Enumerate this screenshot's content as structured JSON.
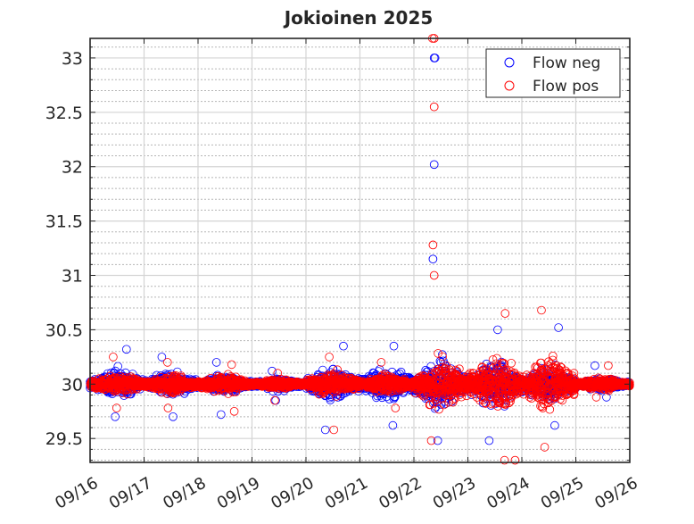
{
  "chart_data": {
    "type": "scatter",
    "title": "Jokioinen 2025",
    "xlabel": "",
    "ylabel": "",
    "x_tick_labels": [
      "09/16",
      "09/17",
      "09/18",
      "09/19",
      "09/20",
      "09/21",
      "09/22",
      "09/23",
      "09/24",
      "09/25",
      "09/26"
    ],
    "x_range": [
      "09/16",
      "09/26"
    ],
    "y_tick_labels": [
      "29.5",
      "30",
      "30.5",
      "31",
      "31.5",
      "32",
      "32.5",
      "33"
    ],
    "ylim": [
      29.28,
      33.18
    ],
    "grid": true,
    "minor_grid": true,
    "legend_position": "top-right",
    "series": [
      {
        "name": "Flow neg",
        "color": "#0000ff",
        "marker": "open-circle",
        "approx_daily_envelope": [
          {
            "day": "09/16",
            "min": 29.7,
            "max": 30.32
          },
          {
            "day": "09/17",
            "min": 29.7,
            "max": 30.25
          },
          {
            "day": "09/18",
            "min": 29.72,
            "max": 30.2
          },
          {
            "day": "09/19",
            "min": 29.85,
            "max": 30.12
          },
          {
            "day": "09/20",
            "min": 29.58,
            "max": 30.35
          },
          {
            "day": "09/21",
            "min": 29.62,
            "max": 30.35
          },
          {
            "day": "09/22",
            "min": 29.48,
            "max": 33.0
          },
          {
            "day": "09/23",
            "min": 29.48,
            "max": 30.5
          },
          {
            "day": "09/24",
            "min": 29.62,
            "max": 30.52
          },
          {
            "day": "09/25",
            "min": 29.88,
            "max": 30.17
          }
        ],
        "outliers": [
          {
            "date": "09/22 09:00",
            "value": 33.0
          },
          {
            "date": "09/22 09:00",
            "value": 32.02
          },
          {
            "date": "09/22 08:30",
            "value": 31.15
          }
        ]
      },
      {
        "name": "Flow pos",
        "color": "#ff0000",
        "marker": "open-circle",
        "approx_daily_envelope": [
          {
            "day": "09/16",
            "min": 29.78,
            "max": 30.25
          },
          {
            "day": "09/17",
            "min": 29.78,
            "max": 30.2
          },
          {
            "day": "09/18",
            "min": 29.75,
            "max": 30.18
          },
          {
            "day": "09/19",
            "min": 29.85,
            "max": 30.1
          },
          {
            "day": "09/20",
            "min": 29.58,
            "max": 30.25
          },
          {
            "day": "09/21",
            "min": 29.78,
            "max": 30.2
          },
          {
            "day": "09/22",
            "min": 29.48,
            "max": 33.18
          },
          {
            "day": "09/23",
            "min": 29.3,
            "max": 30.65
          },
          {
            "day": "09/24",
            "min": 29.42,
            "max": 30.68
          },
          {
            "day": "09/25",
            "min": 29.88,
            "max": 30.17
          }
        ],
        "outliers": [
          {
            "date": "09/22 09:00",
            "value": 33.18
          },
          {
            "date": "09/22 09:00",
            "value": 32.55
          },
          {
            "date": "09/22 08:30",
            "value": 31.28
          },
          {
            "date": "09/22 09:00",
            "value": 31.0
          },
          {
            "date": "09/23 21:00",
            "value": 29.3
          }
        ]
      }
    ]
  }
}
